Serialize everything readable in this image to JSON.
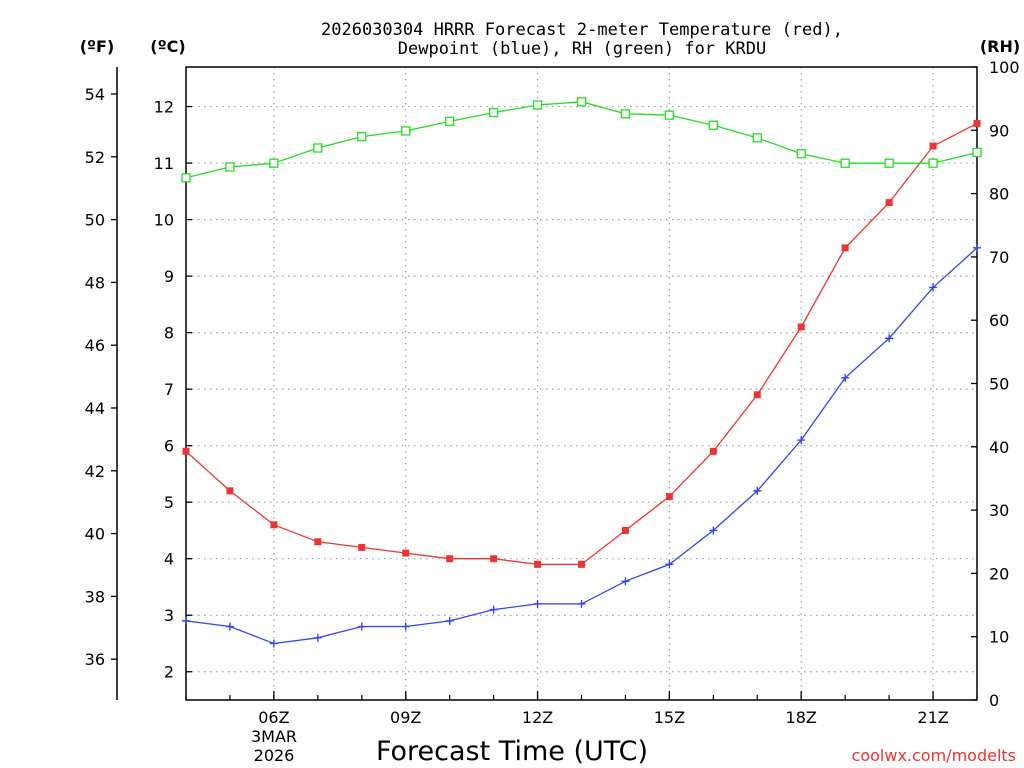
{
  "chart_data": {
    "type": "line",
    "title_line1": "2026030304 HRRR Forecast 2-meter Temperature (red),",
    "title_line2": "Dewpoint (blue), RH (green) for KRDU",
    "xlabel": "Forecast Time (UTC)",
    "watermark": "coolwx.com/modelts",
    "axis_labels": {
      "fahrenheit": "(ºF)",
      "celsius": "(ºC)",
      "rh": "(RH)"
    },
    "x_ticks": [
      "06Z",
      "09Z",
      "12Z",
      "15Z",
      "18Z",
      "21Z"
    ],
    "x_date_line1": "3MAR",
    "x_date_line2": "2026",
    "x_hours": [
      4,
      5,
      6,
      7,
      8,
      9,
      10,
      11,
      12,
      13,
      14,
      15,
      16,
      17,
      18,
      19,
      20,
      21,
      22
    ],
    "celsius_ticks": [
      2,
      3,
      4,
      5,
      6,
      7,
      8,
      9,
      10,
      11,
      12
    ],
    "fahrenheit_ticks": [
      36,
      38,
      40,
      42,
      44,
      46,
      48,
      50,
      52,
      54
    ],
    "rh_ticks": [
      0,
      10,
      20,
      30,
      40,
      50,
      60,
      70,
      80,
      90,
      100
    ],
    "ylim_celsius": [
      1.5,
      12.7
    ],
    "ylim_rh": [
      0,
      100
    ],
    "colors": {
      "temperature": "#ee3333",
      "dewpoint": "#3344ee",
      "rh": "#22dd22",
      "grid": "#9a9a9a",
      "watermark": "#ee3333"
    },
    "series": [
      {
        "name": "Temperature (°C)",
        "axis": "celsius",
        "marker": "filled-square",
        "values": [
          5.9,
          5.2,
          4.6,
          4.3,
          4.2,
          4.1,
          4.0,
          4.0,
          3.9,
          3.9,
          4.5,
          5.1,
          5.9,
          6.9,
          8.1,
          9.5,
          10.3,
          11.3,
          11.7
        ]
      },
      {
        "name": "Dewpoint (°C)",
        "axis": "celsius",
        "marker": "plus",
        "values": [
          2.9,
          2.8,
          2.5,
          2.6,
          2.8,
          2.8,
          2.9,
          3.1,
          3.2,
          3.2,
          3.6,
          3.9,
          4.5,
          5.2,
          6.1,
          7.2,
          7.9,
          8.8,
          9.5
        ]
      },
      {
        "name": "Relative Humidity (%)",
        "axis": "rh",
        "marker": "open-square",
        "values": [
          82.5,
          84.2,
          84.8,
          87.2,
          89.0,
          89.9,
          91.4,
          92.8,
          94.0,
          94.5,
          92.6,
          92.4,
          90.8,
          88.8,
          86.3,
          84.8,
          84.8,
          84.8,
          86.5
        ]
      }
    ]
  }
}
